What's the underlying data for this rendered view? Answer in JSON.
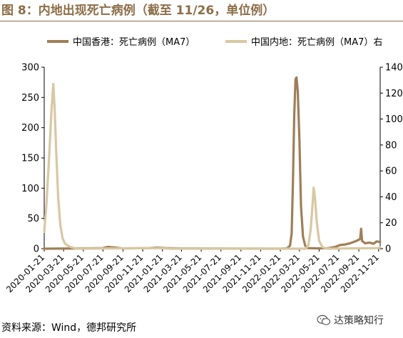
{
  "header": {
    "title": "图 8：内地出现死亡病例（截至 11/26，单位例）"
  },
  "footer": {
    "source": "资料来源：Wind，德邦研究所",
    "watermark": "达策略知行"
  },
  "icons": {
    "watermark_icon": "wechat-icon"
  },
  "colors": {
    "hk": "#a07e56",
    "mainland": "#d8c7a1",
    "title": "#8c6d46",
    "axis": "#000000"
  },
  "chart_data": {
    "type": "line",
    "x_tick_labels": [
      "2020-01-21",
      "2020-03-21",
      "2020-05-21",
      "2020-07-21",
      "2020-09-21",
      "2020-11-21",
      "2021-01-21",
      "2021-03-21",
      "2021-05-21",
      "2021-07-21",
      "2021-09-21",
      "2021-11-21",
      "2022-01-21",
      "2022-03-21",
      "2022-05-21",
      "2022-07-21",
      "2022-09-21",
      "2022-11-21"
    ],
    "xlim": [
      "2020-01-21",
      "2022-11-26"
    ],
    "y_left": {
      "ylim": [
        0,
        300
      ],
      "ticks": [
        "0",
        "50",
        "100",
        "150",
        "200",
        "250",
        "300"
      ]
    },
    "y_right": {
      "ylim": [
        0,
        140
      ],
      "ticks": [
        "0",
        "20",
        "40",
        "60",
        "80",
        "100",
        "120",
        "140"
      ]
    },
    "grid": false,
    "legend_position": "top",
    "series": [
      {
        "name": "中国香港：死亡病例（MA7）",
        "axis": "left",
        "points": [
          [
            "2020-01-21",
            0
          ],
          [
            "2020-05-15",
            0.5
          ],
          [
            "2020-07-20",
            1
          ],
          [
            "2020-08-05",
            3
          ],
          [
            "2020-08-25",
            2
          ],
          [
            "2020-09-20",
            0.5
          ],
          [
            "2020-12-10",
            1
          ],
          [
            "2021-01-05",
            2
          ],
          [
            "2021-02-01",
            1
          ],
          [
            "2021-03-15",
            0.3
          ],
          [
            "2022-01-21",
            0
          ],
          [
            "2022-02-10",
            0.5
          ],
          [
            "2022-02-20",
            5
          ],
          [
            "2022-02-25",
            25
          ],
          [
            "2022-03-01",
            110
          ],
          [
            "2022-03-05",
            220
          ],
          [
            "2022-03-09",
            280
          ],
          [
            "2022-03-12",
            283
          ],
          [
            "2022-03-16",
            260
          ],
          [
            "2022-03-21",
            180
          ],
          [
            "2022-03-26",
            70
          ],
          [
            "2022-04-01",
            20
          ],
          [
            "2022-04-08",
            5
          ],
          [
            "2022-04-15",
            1
          ],
          [
            "2022-05-21",
            0.5
          ],
          [
            "2022-06-20",
            1
          ],
          [
            "2022-07-10",
            3
          ],
          [
            "2022-07-25",
            6
          ],
          [
            "2022-08-10",
            7
          ],
          [
            "2022-08-25",
            9
          ],
          [
            "2022-09-10",
            12
          ],
          [
            "2022-09-25",
            16
          ],
          [
            "2022-09-28",
            33
          ],
          [
            "2022-10-01",
            13
          ],
          [
            "2022-10-10",
            9
          ],
          [
            "2022-10-25",
            10
          ],
          [
            "2022-11-05",
            8
          ],
          [
            "2022-11-15",
            12
          ],
          [
            "2022-11-26",
            11
          ]
        ]
      },
      {
        "name": "中国内地：死亡病例（MA7）右",
        "axis": "right",
        "points": [
          [
            "2020-01-21",
            13
          ],
          [
            "2020-01-28",
            35
          ],
          [
            "2020-02-05",
            70
          ],
          [
            "2020-02-12",
            105
          ],
          [
            "2020-02-18",
            127
          ],
          [
            "2020-02-22",
            110
          ],
          [
            "2020-02-27",
            75
          ],
          [
            "2020-03-04",
            40
          ],
          [
            "2020-03-11",
            18
          ],
          [
            "2020-03-18",
            8
          ],
          [
            "2020-03-25",
            4
          ],
          [
            "2020-04-05",
            2
          ],
          [
            "2020-04-15",
            1
          ],
          [
            "2020-05-01",
            0
          ],
          [
            "2021-01-15",
            0.5
          ],
          [
            "2021-02-10",
            0
          ],
          [
            "2022-03-21",
            0
          ],
          [
            "2022-04-10",
            0
          ],
          [
            "2022-04-18",
            3
          ],
          [
            "2022-04-25",
            15
          ],
          [
            "2022-05-01",
            35
          ],
          [
            "2022-05-04",
            47
          ],
          [
            "2022-05-08",
            40
          ],
          [
            "2022-05-14",
            20
          ],
          [
            "2022-05-21",
            6
          ],
          [
            "2022-06-01",
            1
          ],
          [
            "2022-06-15",
            0
          ],
          [
            "2022-11-20",
            0.5
          ],
          [
            "2022-11-26",
            1
          ]
        ]
      }
    ]
  }
}
